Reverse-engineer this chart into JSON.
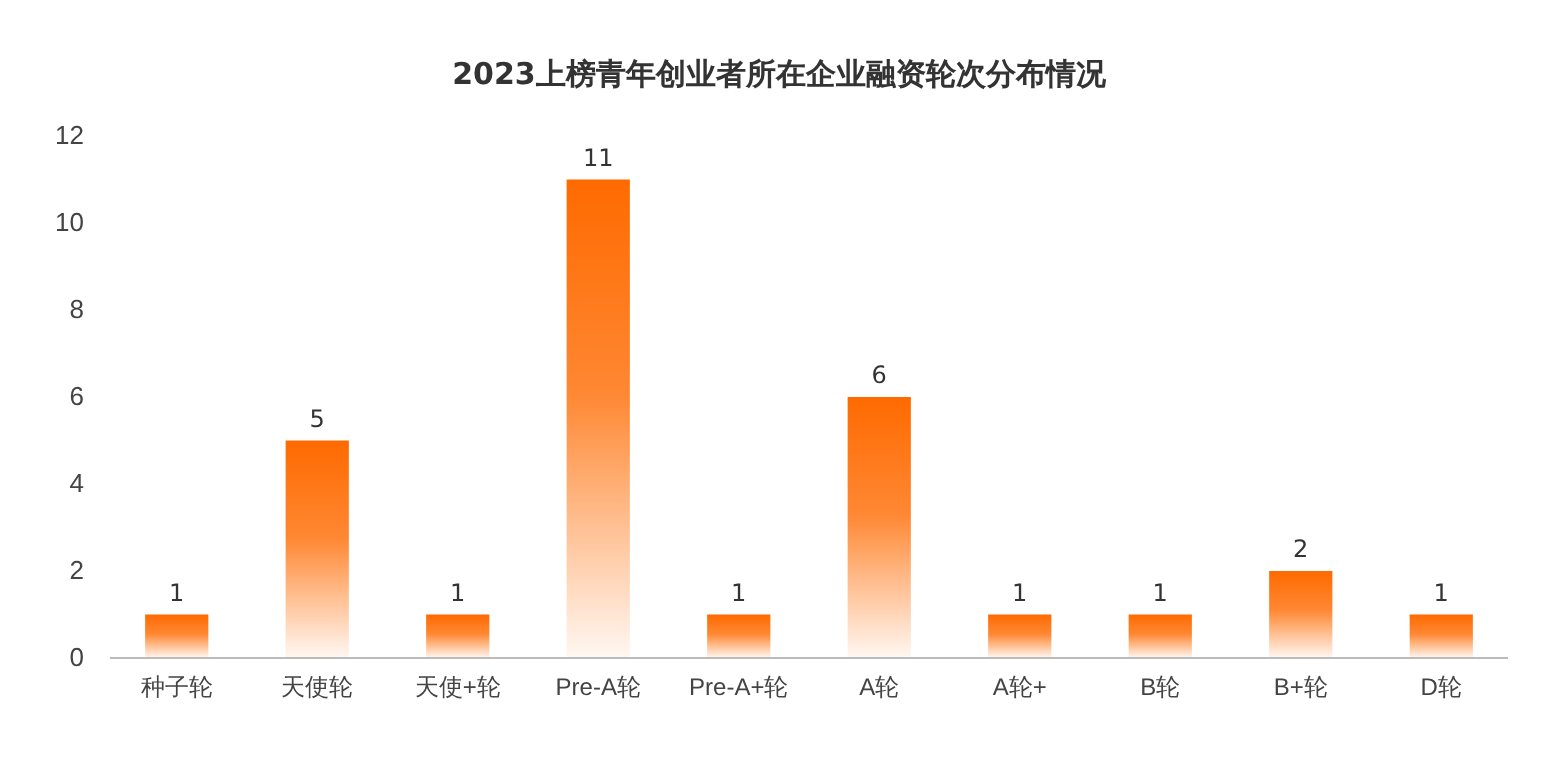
{
  "chart_data": {
    "type": "bar",
    "title": "2023上榜青年创业者所在企业融资轮次分布情况",
    "categories": [
      "种子轮",
      "天使轮",
      "天使+轮",
      "Pre-A轮",
      "Pre-A+轮",
      "A轮",
      "A轮+",
      "B轮",
      "B+轮",
      "D轮"
    ],
    "values": [
      1,
      5,
      1,
      11,
      1,
      6,
      1,
      1,
      2,
      1
    ],
    "color": "#ff6a00",
    "ylim": [
      0,
      12
    ],
    "yticks": [
      0,
      2,
      4,
      6,
      8,
      10,
      12
    ],
    "grid": false,
    "data_labels": true
  }
}
